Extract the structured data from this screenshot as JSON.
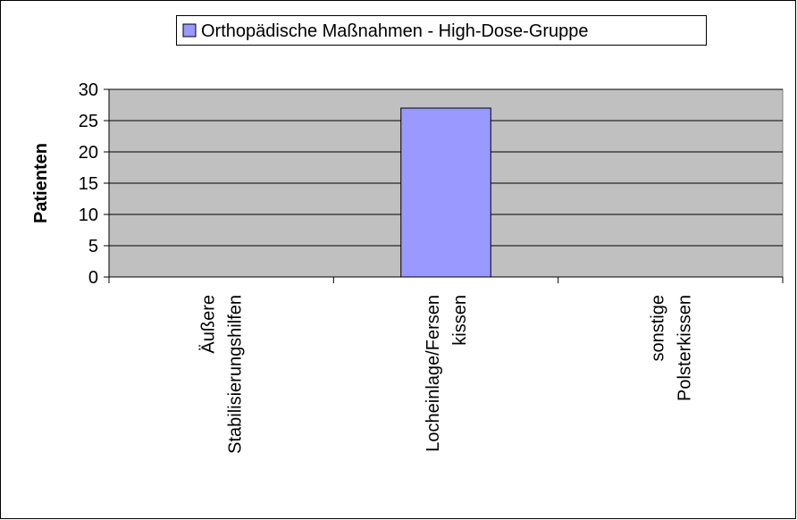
{
  "chart_data": {
    "type": "bar",
    "legend": "Orthopädische Maßnahmen - High-Dose-Gruppe",
    "ylabel": "Patienten",
    "categories": [
      "Äußere Stabilisierungshilfen",
      "Locheinlage/Fersen kissen",
      "sonstige Polsterkissen"
    ],
    "values": [
      0,
      27,
      0
    ],
    "color": "#9999ff",
    "ylim": [
      0,
      30
    ],
    "yticks": [
      0,
      5,
      10,
      15,
      20,
      25,
      30
    ],
    "grid": true
  }
}
